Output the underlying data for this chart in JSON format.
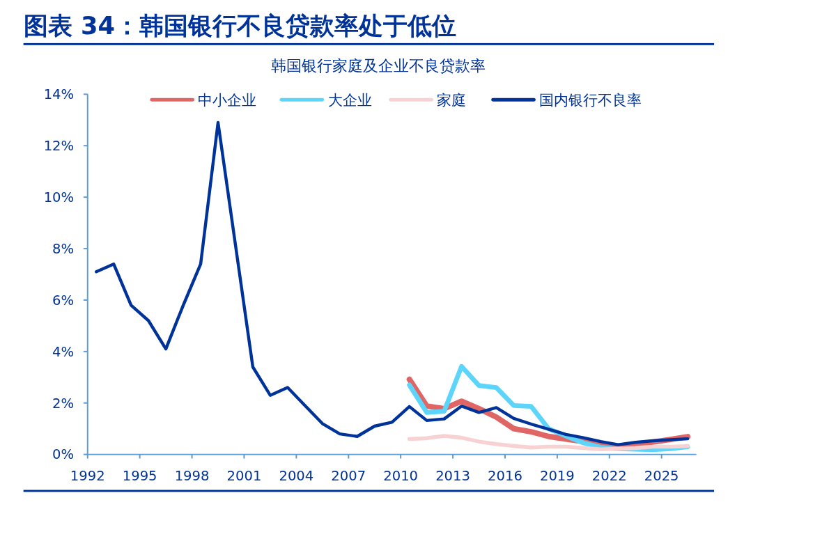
{
  "chart_data": {
    "type": "line",
    "title": "图表 34：韩国银行不良贷款率处于低位",
    "subtitle": "韩国银行家庭及企业不良贷款率",
    "xlim": [
      1992,
      2027
    ],
    "xticks": [
      1992,
      1995,
      1998,
      2001,
      2004,
      2007,
      2010,
      2013,
      2016,
      2019,
      2022,
      2025
    ],
    "ylim": [
      0,
      14
    ],
    "yticks": [
      {
        "value": 0,
        "label": "0%"
      },
      {
        "value": 2,
        "label": "2%"
      },
      {
        "value": 4,
        "label": "4%"
      },
      {
        "value": 6,
        "label": "6%"
      },
      {
        "value": 8,
        "label": "8%"
      },
      {
        "value": 10,
        "label": "10%"
      },
      {
        "value": 12,
        "label": "12%"
      },
      {
        "value": 14,
        "label": "14%"
      }
    ],
    "grid": false,
    "legend": "top",
    "marker": "none",
    "line_style": "solid",
    "series": [
      {
        "name": "中小企业",
        "color": "#e06666",
        "x": [
          2010.5,
          2011.5,
          2012.5,
          2013.5,
          2014.5,
          2015.5,
          2016.5,
          2017.5,
          2018.5,
          2019.5,
          2020.5,
          2021.5,
          2022.5,
          2023.5,
          2024.5,
          2025.5,
          2026.5
        ],
        "values": [
          2.92,
          1.88,
          1.78,
          2.07,
          1.78,
          1.45,
          1.0,
          0.88,
          0.7,
          0.6,
          0.5,
          0.35,
          0.32,
          0.38,
          0.48,
          0.58,
          0.69
        ]
      },
      {
        "name": "大企业",
        "color": "#5dd5fb",
        "x": [
          2010.5,
          2011.5,
          2012.5,
          2013.5,
          2014.5,
          2015.5,
          2016.5,
          2017.5,
          2018.5,
          2019.5,
          2020.5,
          2021.5,
          2022.5,
          2023.5,
          2024.5,
          2025.5,
          2026.5
        ],
        "values": [
          2.7,
          1.63,
          1.68,
          3.42,
          2.68,
          2.6,
          1.9,
          1.87,
          1.0,
          0.72,
          0.45,
          0.28,
          0.22,
          0.2,
          0.18,
          0.22,
          0.3
        ]
      },
      {
        "name": "家庭",
        "color": "#f8d2d2",
        "x": [
          2010.5,
          2011.5,
          2012.5,
          2013.5,
          2014.5,
          2015.5,
          2016.5,
          2017.5,
          2018.5,
          2019.5,
          2020.5,
          2021.5,
          2022.5,
          2023.5,
          2024.5,
          2025.5,
          2026.5
        ],
        "values": [
          0.6,
          0.63,
          0.72,
          0.65,
          0.5,
          0.4,
          0.33,
          0.27,
          0.3,
          0.3,
          0.25,
          0.2,
          0.22,
          0.25,
          0.3,
          0.3,
          0.32
        ]
      },
      {
        "name": "国内银行不良率",
        "color": "#003399",
        "x": [
          1992.5,
          1993.5,
          1994.5,
          1995.5,
          1996.5,
          1997.5,
          1998.5,
          1999.5,
          2001.5,
          2002.5,
          2003.5,
          2004.5,
          2005.5,
          2006.5,
          2007.5,
          2008.5,
          2009.5,
          2010.5,
          2011.5,
          2012.5,
          2013.5,
          2014.5,
          2015.5,
          2016.5,
          2017.5,
          2018.5,
          2019.5,
          2020.5,
          2021.5,
          2022.5,
          2023.5,
          2024.5,
          2025.5,
          2026.5
        ],
        "values": [
          7.1,
          7.4,
          5.8,
          5.2,
          4.1,
          5.8,
          7.4,
          12.9,
          3.4,
          2.3,
          2.6,
          1.9,
          1.2,
          0.8,
          0.7,
          1.1,
          1.25,
          1.86,
          1.32,
          1.38,
          1.88,
          1.63,
          1.82,
          1.4,
          1.18,
          0.98,
          0.78,
          0.65,
          0.5,
          0.38,
          0.47,
          0.53,
          0.57,
          0.61
        ]
      }
    ]
  }
}
